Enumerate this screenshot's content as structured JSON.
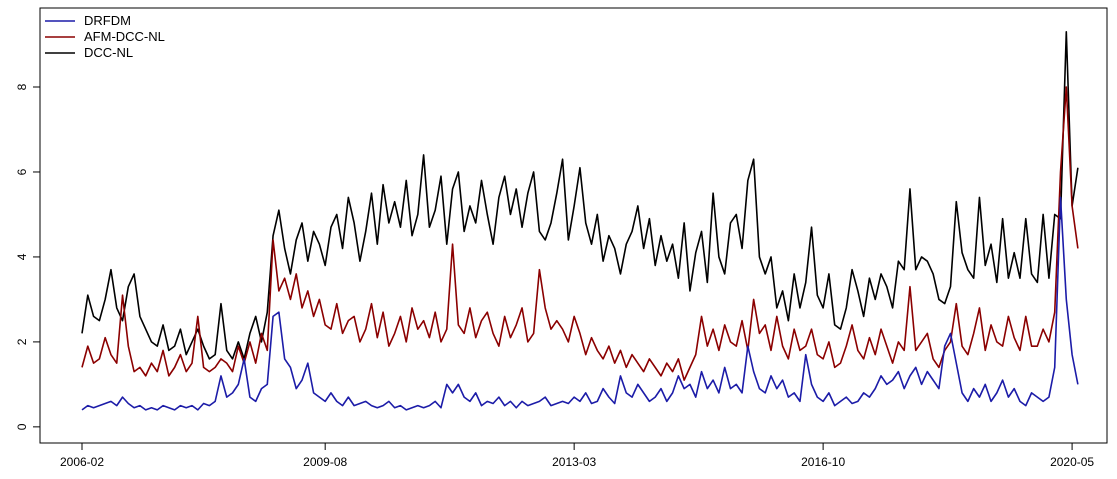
{
  "chart_data": {
    "type": "line",
    "x": [
      "2006-02",
      "2006-03",
      "2006-04",
      "2006-05",
      "2006-06",
      "2006-07",
      "2006-08",
      "2006-09",
      "2006-10",
      "2006-11",
      "2006-12",
      "2007-01",
      "2007-02",
      "2007-03",
      "2007-04",
      "2007-05",
      "2007-06",
      "2007-07",
      "2007-08",
      "2007-09",
      "2007-10",
      "2007-11",
      "2007-12",
      "2008-01",
      "2008-02",
      "2008-03",
      "2008-04",
      "2008-05",
      "2008-06",
      "2008-07",
      "2008-08",
      "2008-09",
      "2008-10",
      "2008-11",
      "2008-12",
      "2009-01",
      "2009-02",
      "2009-03",
      "2009-04",
      "2009-05",
      "2009-06",
      "2009-07",
      "2009-08",
      "2009-09",
      "2009-10",
      "2009-11",
      "2009-12",
      "2010-01",
      "2010-02",
      "2010-03",
      "2010-04",
      "2010-05",
      "2010-06",
      "2010-07",
      "2010-08",
      "2010-09",
      "2010-10",
      "2010-11",
      "2010-12",
      "2011-01",
      "2011-02",
      "2011-03",
      "2011-04",
      "2011-05",
      "2011-06",
      "2011-07",
      "2011-08",
      "2011-09",
      "2011-10",
      "2011-11",
      "2011-12",
      "2012-01",
      "2012-02",
      "2012-03",
      "2012-04",
      "2012-05",
      "2012-06",
      "2012-07",
      "2012-08",
      "2012-09",
      "2012-10",
      "2012-11",
      "2012-12",
      "2013-01",
      "2013-02",
      "2013-03",
      "2013-04",
      "2013-05",
      "2013-06",
      "2013-07",
      "2013-08",
      "2013-09",
      "2013-10",
      "2013-11",
      "2013-12",
      "2014-01",
      "2014-02",
      "2014-03",
      "2014-04",
      "2014-05",
      "2014-06",
      "2014-07",
      "2014-08",
      "2014-09",
      "2014-10",
      "2014-11",
      "2014-12",
      "2015-01",
      "2015-02",
      "2015-03",
      "2015-04",
      "2015-05",
      "2015-06",
      "2015-07",
      "2015-08",
      "2015-09",
      "2015-10",
      "2015-11",
      "2015-12",
      "2016-01",
      "2016-02",
      "2016-03",
      "2016-04",
      "2016-05",
      "2016-06",
      "2016-07",
      "2016-08",
      "2016-09",
      "2016-10",
      "2016-11",
      "2016-12",
      "2017-01",
      "2017-02",
      "2017-03",
      "2017-04",
      "2017-05",
      "2017-06",
      "2017-07",
      "2017-08",
      "2017-09",
      "2017-10",
      "2017-11",
      "2017-12",
      "2018-01",
      "2018-02",
      "2018-03",
      "2018-04",
      "2018-05",
      "2018-06",
      "2018-07",
      "2018-08",
      "2018-09",
      "2018-10",
      "2018-11",
      "2018-12",
      "2019-01",
      "2019-02",
      "2019-03",
      "2019-04",
      "2019-05",
      "2019-06",
      "2019-07",
      "2019-08",
      "2019-09",
      "2019-10",
      "2019-11",
      "2019-12",
      "2020-01",
      "2020-02",
      "2020-03",
      "2020-04",
      "2020-05",
      "2020-06"
    ],
    "xticks": [
      "2006-02",
      "2009-08",
      "2013-03",
      "2016-10",
      "2020-05"
    ],
    "ylim": [
      -0.38,
      9.86
    ],
    "yticks": [
      0,
      2,
      4,
      6,
      8
    ],
    "legend": "top-left",
    "series": [
      {
        "name": "DRFDM",
        "color": "#1c1ca8",
        "values": [
          0.4,
          0.5,
          0.45,
          0.5,
          0.55,
          0.6,
          0.5,
          0.7,
          0.55,
          0.45,
          0.5,
          0.4,
          0.45,
          0.4,
          0.5,
          0.45,
          0.4,
          0.5,
          0.45,
          0.5,
          0.4,
          0.55,
          0.5,
          0.6,
          1.2,
          0.7,
          0.8,
          1.0,
          1.6,
          0.7,
          0.6,
          0.9,
          1.0,
          2.6,
          2.7,
          1.6,
          1.4,
          0.9,
          1.1,
          1.5,
          0.8,
          0.7,
          0.6,
          0.8,
          0.6,
          0.5,
          0.7,
          0.5,
          0.55,
          0.6,
          0.5,
          0.45,
          0.5,
          0.6,
          0.45,
          0.5,
          0.4,
          0.45,
          0.5,
          0.45,
          0.5,
          0.6,
          0.45,
          1.0,
          0.8,
          1.0,
          0.7,
          0.6,
          0.8,
          0.5,
          0.6,
          0.55,
          0.7,
          0.5,
          0.6,
          0.45,
          0.6,
          0.5,
          0.55,
          0.6,
          0.7,
          0.5,
          0.55,
          0.6,
          0.55,
          0.7,
          0.6,
          0.8,
          0.55,
          0.6,
          0.9,
          0.7,
          0.55,
          1.2,
          0.8,
          0.7,
          1.0,
          0.8,
          0.6,
          0.7,
          0.9,
          0.6,
          0.8,
          1.2,
          0.9,
          1.0,
          0.7,
          1.3,
          0.9,
          1.1,
          0.8,
          1.4,
          0.9,
          1.0,
          0.8,
          1.9,
          1.3,
          0.9,
          0.8,
          1.2,
          0.9,
          1.1,
          0.7,
          0.8,
          0.6,
          1.7,
          1.0,
          0.7,
          0.6,
          0.8,
          0.5,
          0.6,
          0.7,
          0.55,
          0.6,
          0.8,
          0.7,
          0.9,
          1.2,
          1.0,
          1.1,
          1.3,
          0.9,
          1.2,
          1.4,
          1.0,
          1.3,
          1.1,
          0.9,
          1.9,
          2.2,
          1.5,
          0.8,
          0.6,
          0.9,
          0.7,
          1.0,
          0.6,
          0.8,
          1.1,
          0.7,
          0.9,
          0.6,
          0.5,
          0.8,
          0.7,
          0.6,
          0.7,
          1.4,
          5.4,
          3.0,
          1.7,
          1.0
        ]
      },
      {
        "name": "AFM-DCC-NL",
        "color": "#8b0000",
        "values": [
          1.4,
          1.9,
          1.5,
          1.6,
          2.1,
          1.7,
          1.5,
          3.1,
          1.9,
          1.3,
          1.4,
          1.2,
          1.5,
          1.3,
          1.8,
          1.2,
          1.4,
          1.7,
          1.3,
          1.5,
          2.6,
          1.4,
          1.3,
          1.4,
          1.6,
          1.5,
          1.3,
          1.9,
          1.5,
          2.0,
          1.5,
          2.2,
          1.8,
          4.4,
          3.2,
          3.5,
          3.0,
          3.6,
          2.8,
          3.2,
          2.6,
          3.0,
          2.4,
          2.3,
          2.9,
          2.2,
          2.5,
          2.6,
          2.0,
          2.3,
          2.9,
          2.1,
          2.7,
          1.9,
          2.2,
          2.6,
          2.0,
          2.8,
          2.3,
          2.5,
          2.1,
          2.7,
          2.0,
          2.3,
          4.3,
          2.4,
          2.2,
          2.8,
          2.1,
          2.5,
          2.7,
          2.2,
          1.9,
          2.6,
          2.1,
          2.4,
          2.8,
          2.0,
          2.2,
          3.7,
          2.8,
          2.3,
          2.5,
          2.3,
          2.0,
          2.6,
          2.2,
          1.7,
          2.1,
          1.8,
          1.6,
          1.9,
          1.5,
          1.8,
          1.4,
          1.7,
          1.5,
          1.3,
          1.6,
          1.4,
          1.2,
          1.5,
          1.3,
          1.6,
          1.1,
          1.4,
          1.7,
          2.6,
          1.9,
          2.3,
          1.8,
          2.4,
          2.0,
          1.9,
          2.5,
          1.8,
          3.0,
          2.2,
          2.4,
          1.8,
          2.6,
          1.9,
          1.6,
          2.3,
          1.8,
          1.9,
          2.3,
          1.7,
          1.6,
          2.0,
          1.4,
          1.5,
          1.9,
          2.4,
          1.8,
          1.6,
          2.1,
          1.7,
          2.3,
          1.9,
          1.5,
          2.0,
          1.8,
          3.3,
          1.8,
          2.0,
          2.2,
          1.6,
          1.4,
          1.8,
          2.0,
          2.9,
          1.9,
          1.7,
          2.2,
          2.8,
          1.8,
          2.4,
          2.0,
          1.9,
          2.6,
          2.1,
          1.8,
          2.6,
          1.9,
          1.9,
          2.3,
          2.0,
          2.7,
          6.0,
          8.0,
          5.2,
          4.2
        ]
      },
      {
        "name": "DCC-NL",
        "color": "#000000",
        "values": [
          2.2,
          3.1,
          2.6,
          2.5,
          3.0,
          3.7,
          2.8,
          2.5,
          3.3,
          3.6,
          2.6,
          2.3,
          2.0,
          1.9,
          2.4,
          1.8,
          1.9,
          2.3,
          1.7,
          2.0,
          2.3,
          1.9,
          1.6,
          1.7,
          2.9,
          1.8,
          1.6,
          2.0,
          1.6,
          2.2,
          2.6,
          2.0,
          2.7,
          4.5,
          5.1,
          4.2,
          3.6,
          4.4,
          4.8,
          3.9,
          4.6,
          4.3,
          3.8,
          4.7,
          5.0,
          4.2,
          5.4,
          4.8,
          3.9,
          4.6,
          5.5,
          4.3,
          5.7,
          4.8,
          5.3,
          4.7,
          5.8,
          4.5,
          5.0,
          6.4,
          4.7,
          5.1,
          5.9,
          4.3,
          5.6,
          6.0,
          4.6,
          5.2,
          4.8,
          5.8,
          5.0,
          4.3,
          5.4,
          5.9,
          5.0,
          5.6,
          4.7,
          5.5,
          6.0,
          4.6,
          4.4,
          4.8,
          5.5,
          6.3,
          4.4,
          5.2,
          6.1,
          4.8,
          4.3,
          5.0,
          3.9,
          4.5,
          4.2,
          3.6,
          4.3,
          4.6,
          5.2,
          4.2,
          4.9,
          3.8,
          4.5,
          3.9,
          4.3,
          3.5,
          4.8,
          3.2,
          4.1,
          4.6,
          3.4,
          5.5,
          4.0,
          3.6,
          4.8,
          5.0,
          4.2,
          5.8,
          6.3,
          4.0,
          3.6,
          4.0,
          2.8,
          3.2,
          2.5,
          3.6,
          2.8,
          3.4,
          4.7,
          3.1,
          2.8,
          3.6,
          2.4,
          2.3,
          2.8,
          3.7,
          3.2,
          2.6,
          3.5,
          3.0,
          3.6,
          3.3,
          2.8,
          3.9,
          3.7,
          5.6,
          3.7,
          4.0,
          3.9,
          3.6,
          3.0,
          2.9,
          3.3,
          5.3,
          4.1,
          3.7,
          3.5,
          5.4,
          3.8,
          4.3,
          3.4,
          4.9,
          3.5,
          4.1,
          3.5,
          4.9,
          3.6,
          3.4,
          5.0,
          3.5,
          5.0,
          4.9,
          9.3,
          5.2,
          6.1
        ]
      }
    ]
  }
}
